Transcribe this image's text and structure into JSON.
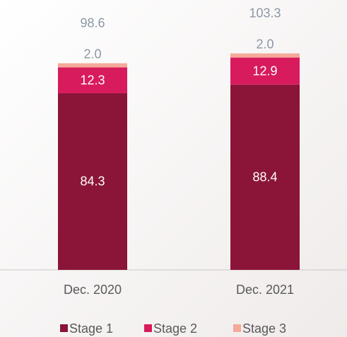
{
  "chart_data": {
    "type": "stacked_bar",
    "categories": [
      "Dec. 2020",
      "Dec. 2021"
    ],
    "series": [
      {
        "name": "Stage 1",
        "color": "#8b1538",
        "values": [
          84.3,
          88.4
        ]
      },
      {
        "name": "Stage 2",
        "color": "#d81b5c",
        "values": [
          12.3,
          12.9
        ]
      },
      {
        "name": "Stage 3",
        "color": "#f4a999",
        "values": [
          2.0,
          2.0
        ],
        "value_labels": [
          "2.0",
          "2.0"
        ]
      }
    ],
    "totals": [
      98.6,
      103.3
    ]
  }
}
